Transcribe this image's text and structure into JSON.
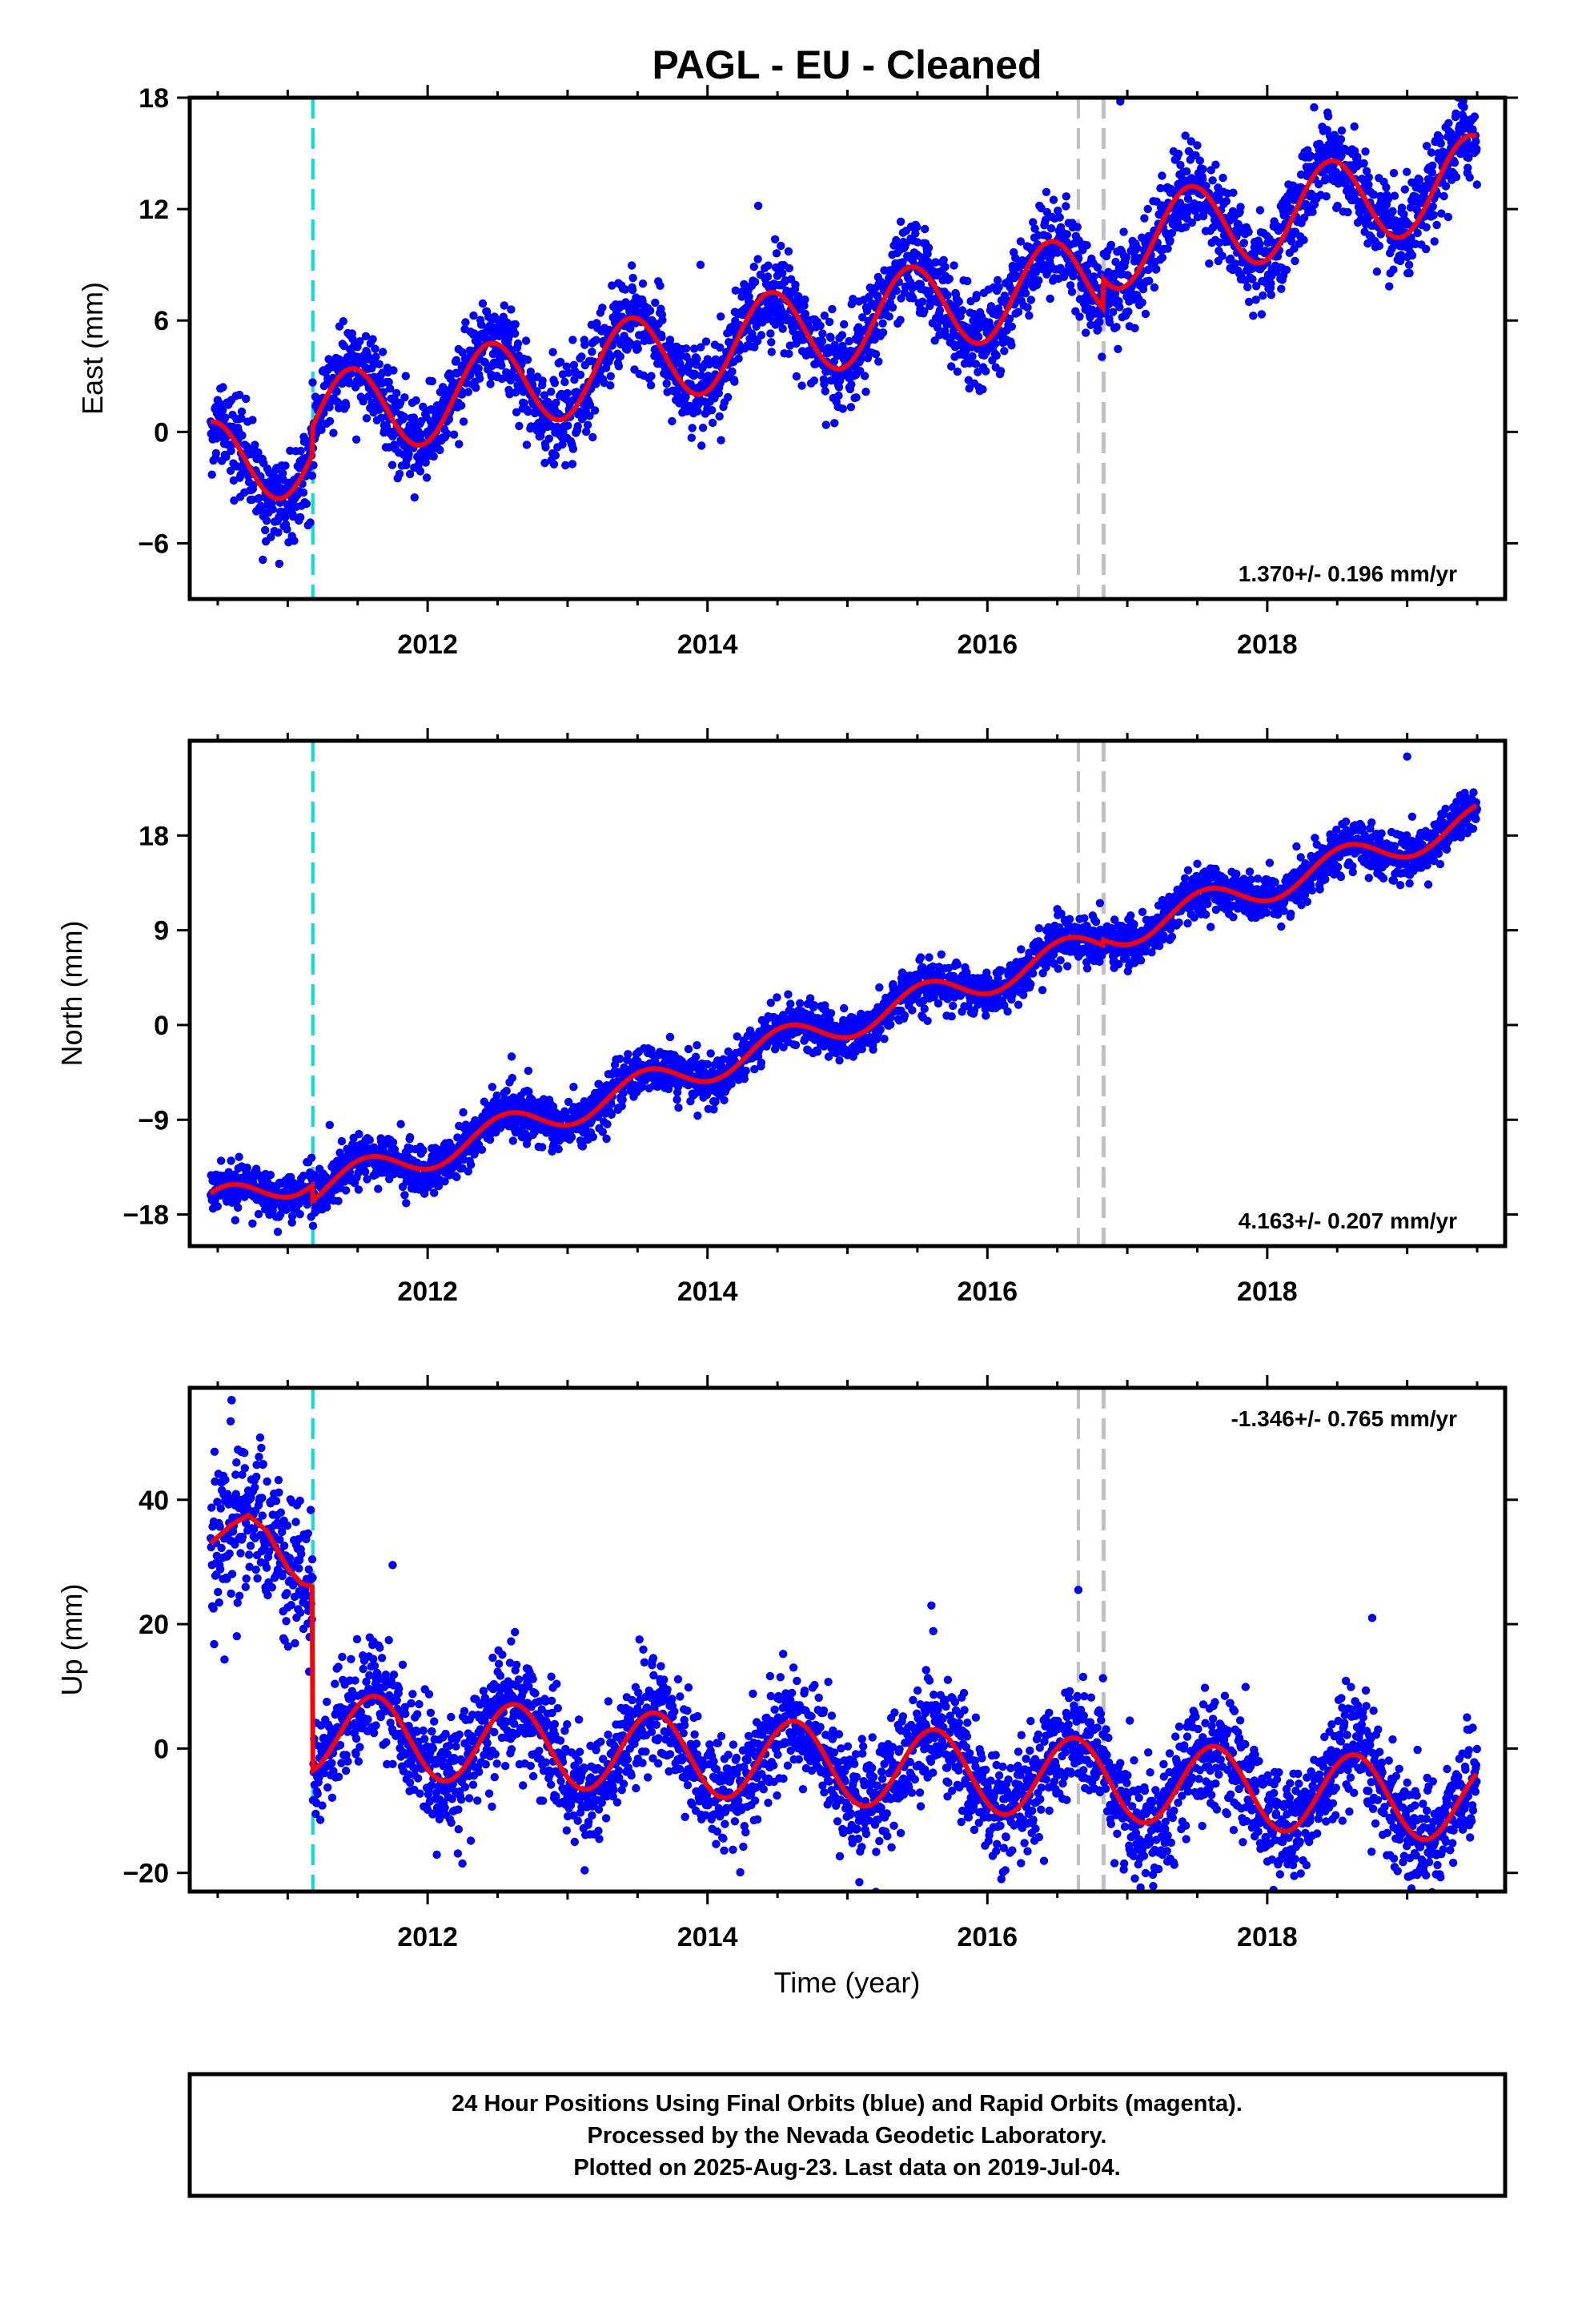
{
  "title": "PAGL  - EU - Cleaned",
  "xlabel": "Time (year)",
  "footer": {
    "line1": "24 Hour Positions Using Final Orbits (blue) and Rapid Orbits (magenta).",
    "line2": "Processed by the Nevada Geodetic Laboratory.",
    "line3": "Plotted on 2025-Aug-23. Last data on 2019-Jul-04."
  },
  "colors": {
    "points": "#0000ff",
    "model": "#ff0000",
    "equipment_change": "#00e0e0",
    "antenna_change": "#c0c0c0"
  },
  "chart_data": [
    {
      "type": "scatter",
      "component": "East",
      "ylabel": "East (mm)",
      "ylim": [
        -9,
        18
      ],
      "yticks": [
        -6,
        0,
        6,
        12,
        18
      ],
      "xlim": [
        2010.3,
        2019.7
      ],
      "xticks": [
        2012,
        2014,
        2016,
        2018
      ],
      "rate": "1.370+/- 0.196 mm/yr",
      "rate_position": "bottom-right",
      "model": {
        "trend": {
          "t0": 2010.5,
          "value_at_t0": -1.8,
          "rate": 1.37
        },
        "annual_amplitude": 2.4,
        "annual_peak_fraction": 0.45,
        "offsets": [
          {
            "year": 2011.18,
            "value": 1.5
          },
          {
            "year": 2016.83,
            "value": 1.6
          }
        ],
        "noise": 1.2
      },
      "outliers": [
        [
          2013.95,
          9.0
        ],
        [
          2017.4,
          14.0
        ],
        [
          2016.95,
          17.8
        ],
        [
          2014.45,
          5.3
        ],
        [
          2019.3,
          14.5
        ]
      ]
    },
    {
      "type": "scatter",
      "component": "North",
      "ylabel": "North (mm)",
      "ylim": [
        -21,
        27
      ],
      "yticks": [
        -18,
        -9,
        0,
        9,
        18
      ],
      "xlim": [
        2010.3,
        2019.7
      ],
      "xticks": [
        2012,
        2014,
        2016,
        2018
      ],
      "rate": "4.163+/- 0.207 mm/yr",
      "rate_position": "bottom-right",
      "model": {
        "trend": {
          "t0": 2010.5,
          "value_at_t0": -17.0,
          "rate": 4.163
        },
        "annual_amplitude": 1.5,
        "annual_peak_fraction": 0.55,
        "offsets": [
          {
            "year": 2011.18,
            "value": -1.5
          },
          {
            "year": 2016.83,
            "value": 0.5
          }
        ],
        "noise": 1.1
      },
      "outliers": [
        [
          2019.0,
          25.5
        ],
        [
          2016.5,
          11.0
        ],
        [
          2011.3,
          -9.5
        ],
        [
          2012.6,
          -3.0
        ]
      ]
    },
    {
      "type": "scatter",
      "component": "Up",
      "ylabel": "Up (mm)",
      "ylim": [
        -23,
        58
      ],
      "yticks": [
        -20,
        0,
        20,
        40
      ],
      "xlim": [
        2010.3,
        2019.7
      ],
      "xticks": [
        2012,
        2014,
        2016,
        2018
      ],
      "rate": "-1.346+/- 0.765 mm/yr",
      "rate_position": "top-right",
      "model": {
        "trend": {
          "t0": 2011.2,
          "value_at_t0": 2.5,
          "rate": -1.346
        },
        "annual_amplitude": 6.5,
        "annual_peak_fraction": 0.62,
        "offsets": [],
        "noise": 4.5
      },
      "pre_break_model": [
        [
          2010.45,
          33.0
        ],
        [
          2010.6,
          36.0
        ],
        [
          2010.72,
          37.5
        ],
        [
          2010.85,
          35.0
        ],
        [
          2011.0,
          29.0
        ],
        [
          2011.1,
          26.5
        ],
        [
          2011.18,
          26.0
        ]
      ],
      "outliers": [
        [
          2010.6,
          56.0
        ],
        [
          2016.65,
          25.5
        ],
        [
          2015.6,
          23.0
        ],
        [
          2011.75,
          29.5
        ],
        [
          2018.75,
          21.0
        ],
        [
          2016.1,
          -21.0
        ]
      ]
    }
  ],
  "events": [
    {
      "year": 2011.18,
      "kind": "equipment_change"
    },
    {
      "year": 2016.65,
      "kind": "antenna_change"
    },
    {
      "year": 2016.83,
      "kind": "antenna_change"
    }
  ]
}
